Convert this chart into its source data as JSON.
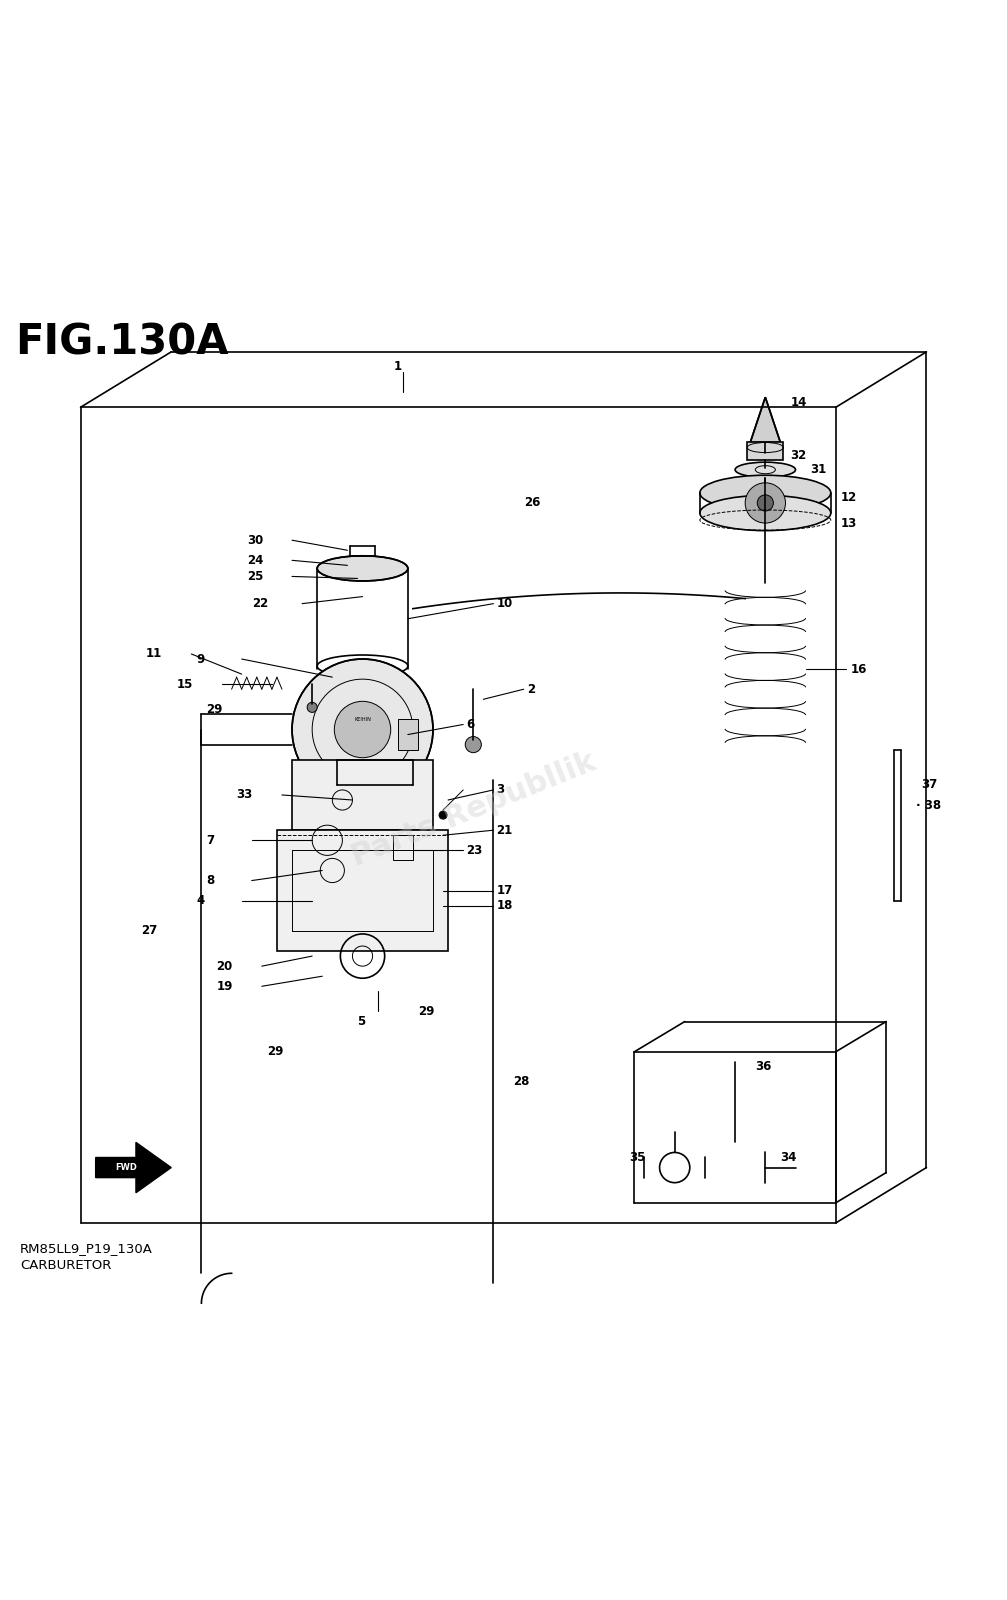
{
  "title": "FIG.130A",
  "subtitle1": "RM85LL9_P19_130A",
  "subtitle2": "CARBURETOR",
  "bg_color": "#ffffff",
  "watermark_text": "Parts Republlik",
  "watermark_color": "#cccccc",
  "watermark_alpha": 0.38,
  "fig_width": 10.07,
  "fig_height": 16.0,
  "title_fontsize": 30,
  "label_fontsize": 8.5,
  "subtitle_fontsize": 9.5,
  "lw_main": 1.2,
  "lw_thin": 0.7
}
